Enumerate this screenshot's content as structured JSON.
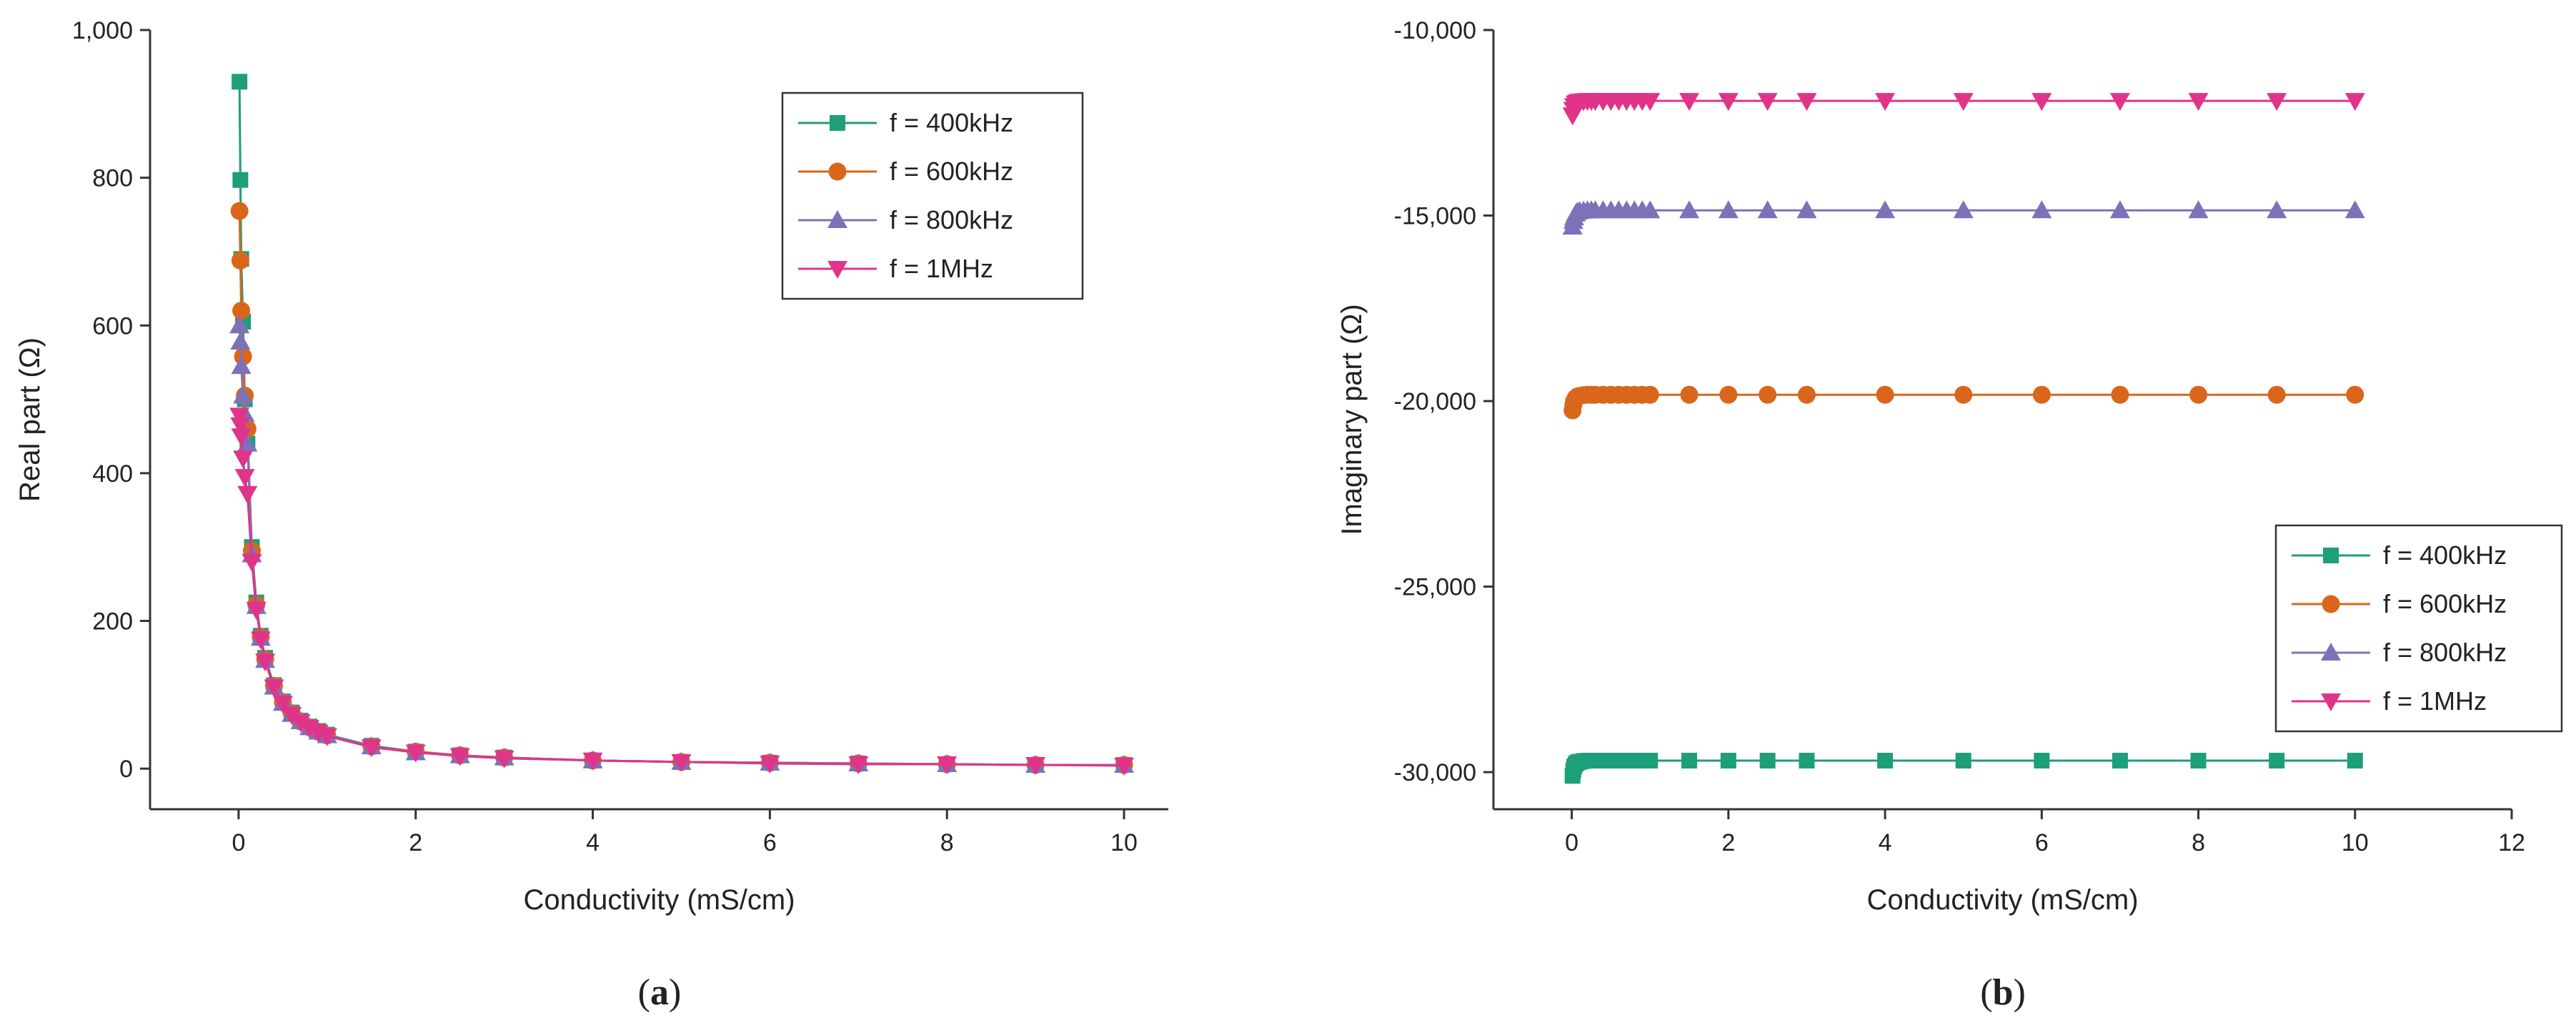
{
  "chart_data": [
    {
      "type": "line",
      "panel_label": "(a)",
      "panel_letter": "a",
      "xlabel": "Conductivity (mS/cm)",
      "ylabel": "Real part (Ω)",
      "xlim": [
        -1,
        10.5
      ],
      "ylim": [
        -55,
        1000
      ],
      "xticks": [
        0,
        2,
        4,
        6,
        8,
        10
      ],
      "xtick_labels": [
        "0",
        "2",
        "4",
        "6",
        "8",
        "10"
      ],
      "yticks": [
        0,
        200,
        400,
        600,
        800,
        1000
      ],
      "ytick_labels": [
        "0",
        "200",
        "400",
        "600",
        "800",
        "1,000"
      ],
      "grid": false,
      "legend_position": "top-right",
      "x": [
        0.01,
        0.02,
        0.03,
        0.05,
        0.07,
        0.1,
        0.15,
        0.2,
        0.25,
        0.3,
        0.4,
        0.5,
        0.6,
        0.7,
        0.8,
        0.9,
        1,
        1.5,
        2,
        2.5,
        3,
        4,
        5,
        6,
        7,
        8,
        9,
        10
      ],
      "series": [
        {
          "name": "f = 400kHz",
          "color": "#1f9e7a",
          "marker": "square",
          "values": [
            930,
            797,
            690,
            605,
            500,
            440,
            300,
            225,
            180,
            150,
            113,
            91,
            76,
            65,
            57,
            51,
            46,
            31,
            23,
            18,
            15,
            11,
            9,
            8,
            7,
            6,
            5,
            5
          ]
        },
        {
          "name": "f = 600kHz",
          "color": "#d9661b",
          "marker": "circle",
          "values": [
            755,
            688,
            620,
            558,
            505,
            460,
            295,
            222,
            178,
            148,
            112,
            90,
            75,
            64,
            56,
            50,
            45,
            30,
            23,
            18,
            15,
            11,
            9,
            8,
            7,
            6,
            5,
            5
          ]
        },
        {
          "name": "f = 800kHz",
          "color": "#7b72b8",
          "marker": "triangle-up",
          "values": [
            600,
            578,
            545,
            505,
            480,
            440,
            290,
            220,
            177,
            147,
            111,
            89,
            74,
            64,
            56,
            50,
            45,
            30,
            22,
            18,
            15,
            11,
            9,
            8,
            7,
            6,
            5,
            5
          ]
        },
        {
          "name": "f = 1MHz",
          "color": "#e0348a",
          "marker": "triangle-down",
          "values": [
            478,
            465,
            450,
            420,
            395,
            372,
            280,
            215,
            175,
            145,
            110,
            88,
            73,
            63,
            55,
            49,
            44,
            29,
            22,
            17,
            14,
            11,
            9,
            7,
            6,
            6,
            5,
            4
          ]
        }
      ]
    },
    {
      "type": "line",
      "panel_label": "(b)",
      "panel_letter": "b",
      "xlabel": "Conductivity (mS/cm)",
      "ylabel": "Imaginary part (Ω)",
      "xlim": [
        -1,
        12
      ],
      "ylim": [
        -31000,
        -10000
      ],
      "xticks": [
        0,
        2,
        4,
        6,
        8,
        10,
        12
      ],
      "xtick_labels": [
        "0",
        "2",
        "4",
        "6",
        "8",
        "10",
        "12"
      ],
      "yticks": [
        -30000,
        -25000,
        -20000,
        -15000,
        -10000
      ],
      "ytick_labels": [
        "-30,000",
        "-25,000",
        "-20,000",
        "-15,000",
        "-10,000"
      ],
      "grid": false,
      "legend_position": "right",
      "x": [
        0.01,
        0.02,
        0.03,
        0.05,
        0.07,
        0.1,
        0.15,
        0.2,
        0.25,
        0.3,
        0.4,
        0.5,
        0.6,
        0.7,
        0.8,
        0.9,
        1,
        1.5,
        2,
        2.5,
        3,
        4,
        5,
        6,
        7,
        8,
        9,
        10
      ],
      "series": [
        {
          "name": "f = 400kHz",
          "color": "#1f9e7a",
          "marker": "square",
          "values": [
            -30100,
            -29950,
            -29850,
            -29780,
            -29740,
            -29720,
            -29700,
            -29690,
            -29690,
            -29690,
            -29690,
            -29690,
            -29690,
            -29690,
            -29690,
            -29690,
            -29690,
            -29690,
            -29690,
            -29690,
            -29690,
            -29690,
            -29690,
            -29690,
            -29690,
            -29690,
            -29690,
            -29690
          ]
        },
        {
          "name": "f = 600kHz",
          "color": "#d9661b",
          "marker": "circle",
          "values": [
            -20250,
            -20100,
            -20000,
            -19920,
            -19880,
            -19860,
            -19840,
            -19830,
            -19830,
            -19830,
            -19830,
            -19830,
            -19830,
            -19830,
            -19830,
            -19830,
            -19830,
            -19830,
            -19830,
            -19830,
            -19830,
            -19830,
            -19830,
            -19830,
            -19830,
            -19830,
            -19830,
            -19830
          ]
        },
        {
          "name": "f = 800kHz",
          "color": "#7b72b8",
          "marker": "triangle-up",
          "values": [
            -15300,
            -15150,
            -15050,
            -14950,
            -14900,
            -14880,
            -14870,
            -14860,
            -14860,
            -14860,
            -14860,
            -14860,
            -14860,
            -14860,
            -14860,
            -14860,
            -14860,
            -14860,
            -14860,
            -14860,
            -14860,
            -14860,
            -14860,
            -14860,
            -14860,
            -14860,
            -14860,
            -14860
          ]
        },
        {
          "name": "f = 1MHz",
          "color": "#e0348a",
          "marker": "triangle-down",
          "values": [
            -12300,
            -12150,
            -12050,
            -11980,
            -11950,
            -11930,
            -11920,
            -11910,
            -11910,
            -11910,
            -11910,
            -11910,
            -11910,
            -11910,
            -11910,
            -11910,
            -11910,
            -11910,
            -11910,
            -11910,
            -11910,
            -11910,
            -11910,
            -11910,
            -11910,
            -11910,
            -11910,
            -11910
          ]
        }
      ]
    }
  ]
}
